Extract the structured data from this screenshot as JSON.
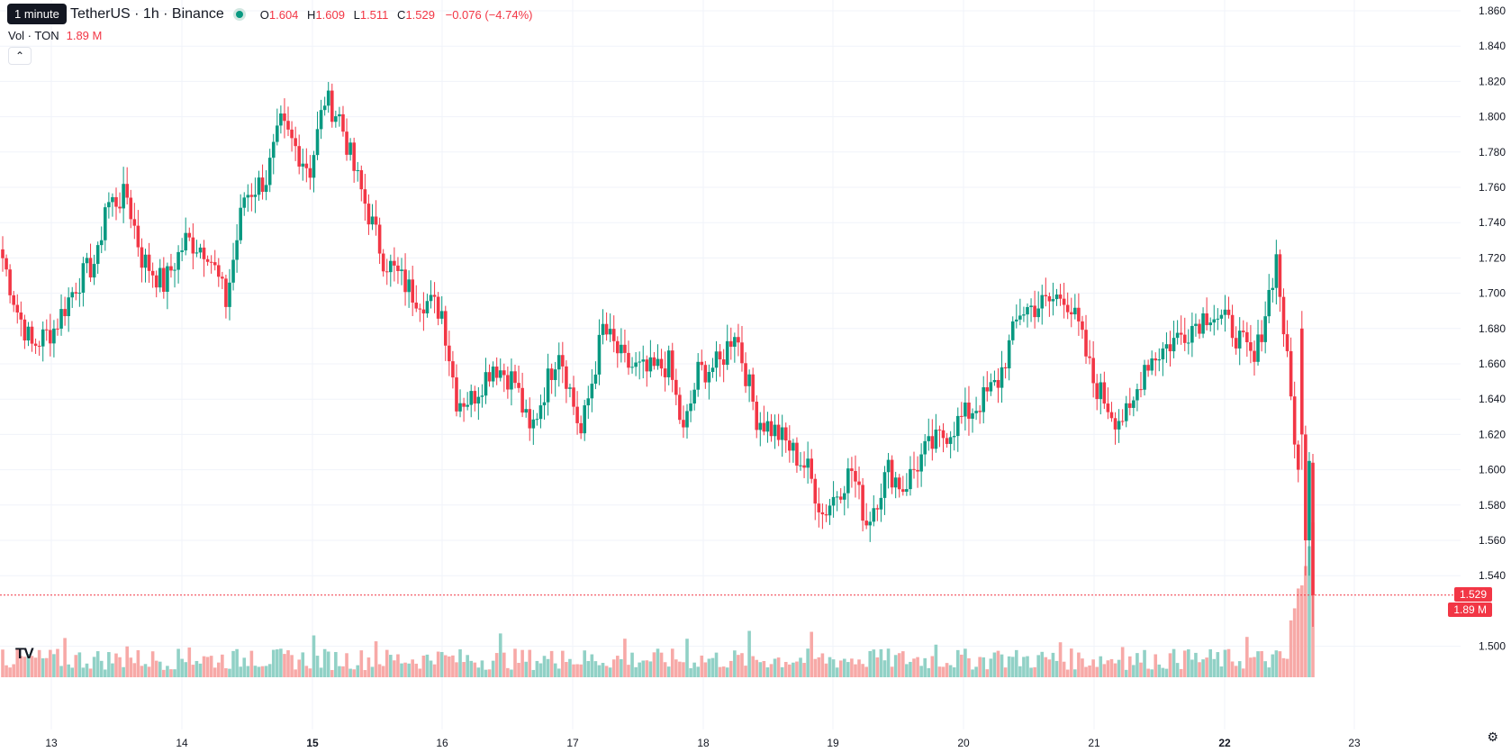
{
  "header": {
    "tooltip": "1 minute",
    "symbol": "TetherUS · 1h · Binance",
    "ohlc": {
      "open_key": "O",
      "open": "1.604",
      "high_key": "H",
      "high": "1.609",
      "low_key": "L",
      "low": "1.511",
      "close_key": "C",
      "close": "1.529",
      "change": "−0.076 (−4.74%)"
    },
    "volume_label": "Vol · TON",
    "volume_value": "1.89 M",
    "collapse_icon": "chevron-up-icon"
  },
  "price_badge": "1.529",
  "volume_badge": "1.89 M",
  "logo_text": "TV",
  "colors": {
    "up": "#089981",
    "down": "#f23645",
    "vol_up": "#91d1c6",
    "vol_down": "#f7a9a7",
    "grid": "#f0f3fa"
  },
  "chart_data": {
    "type": "candlestick",
    "interval": "1h",
    "y_ticks": [
      "1.860",
      "1.840",
      "1.820",
      "1.800",
      "1.780",
      "1.760",
      "1.740",
      "1.720",
      "1.700",
      "1.680",
      "1.660",
      "1.640",
      "1.620",
      "1.600",
      "1.580",
      "1.560",
      "1.540",
      "1.500"
    ],
    "x_ticks": [
      {
        "label": "13",
        "bold": false
      },
      {
        "label": "14",
        "bold": false
      },
      {
        "label": "15",
        "bold": true
      },
      {
        "label": "16",
        "bold": false
      },
      {
        "label": "17",
        "bold": false
      },
      {
        "label": "18",
        "bold": false
      },
      {
        "label": "19",
        "bold": false
      },
      {
        "label": "20",
        "bold": false
      },
      {
        "label": "21",
        "bold": false
      },
      {
        "label": "22",
        "bold": true
      },
      {
        "label": "23",
        "bold": false
      }
    ],
    "last_close": 1.529,
    "anchors": [
      [
        0,
        1.72
      ],
      [
        4,
        1.69
      ],
      [
        8,
        1.67
      ],
      [
        14,
        1.68
      ],
      [
        20,
        1.705
      ],
      [
        26,
        1.72
      ],
      [
        28,
        1.75
      ],
      [
        34,
        1.755
      ],
      [
        38,
        1.72
      ],
      [
        44,
        1.705
      ],
      [
        50,
        1.73
      ],
      [
        56,
        1.725
      ],
      [
        61,
        1.695
      ],
      [
        66,
        1.755
      ],
      [
        72,
        1.765
      ],
      [
        76,
        1.795
      ],
      [
        84,
        1.77
      ],
      [
        88,
        1.81
      ],
      [
        92,
        1.8
      ],
      [
        96,
        1.77
      ],
      [
        104,
        1.72
      ],
      [
        112,
        1.7
      ],
      [
        120,
        1.69
      ],
      [
        124,
        1.64
      ],
      [
        128,
        1.64
      ],
      [
        134,
        1.66
      ],
      [
        140,
        1.65
      ],
      [
        144,
        1.62
      ],
      [
        152,
        1.67
      ],
      [
        158,
        1.62
      ],
      [
        164,
        1.68
      ],
      [
        170,
        1.66
      ],
      [
        176,
        1.655
      ],
      [
        182,
        1.66
      ],
      [
        186,
        1.62
      ],
      [
        190,
        1.655
      ],
      [
        196,
        1.66
      ],
      [
        200,
        1.68
      ],
      [
        206,
        1.63
      ],
      [
        212,
        1.62
      ],
      [
        220,
        1.6
      ],
      [
        224,
        1.575
      ],
      [
        232,
        1.6
      ],
      [
        236,
        1.57
      ],
      [
        242,
        1.6
      ],
      [
        246,
        1.59
      ],
      [
        252,
        1.61
      ],
      [
        260,
        1.625
      ],
      [
        268,
        1.64
      ],
      [
        272,
        1.65
      ],
      [
        278,
        1.69
      ],
      [
        286,
        1.695
      ],
      [
        290,
        1.7
      ],
      [
        294,
        1.68
      ],
      [
        298,
        1.65
      ],
      [
        304,
        1.63
      ],
      [
        308,
        1.63
      ],
      [
        312,
        1.66
      ],
      [
        318,
        1.67
      ],
      [
        324,
        1.68
      ],
      [
        330,
        1.69
      ],
      [
        336,
        1.68
      ],
      [
        342,
        1.66
      ],
      [
        348,
        1.72
      ],
      [
        352,
        1.64
      ],
      [
        354,
        1.6
      ]
    ],
    "final_candles": [
      {
        "o": 1.68,
        "h": 1.69,
        "l": 1.6,
        "c": 1.62
      },
      {
        "o": 1.62,
        "h": 1.625,
        "l": 1.54,
        "c": 1.56
      },
      {
        "o": 1.56,
        "h": 1.61,
        "l": 1.54,
        "c": 1.605
      },
      {
        "o": 1.604,
        "h": 1.609,
        "l": 1.511,
        "c": 1.529
      }
    ]
  }
}
